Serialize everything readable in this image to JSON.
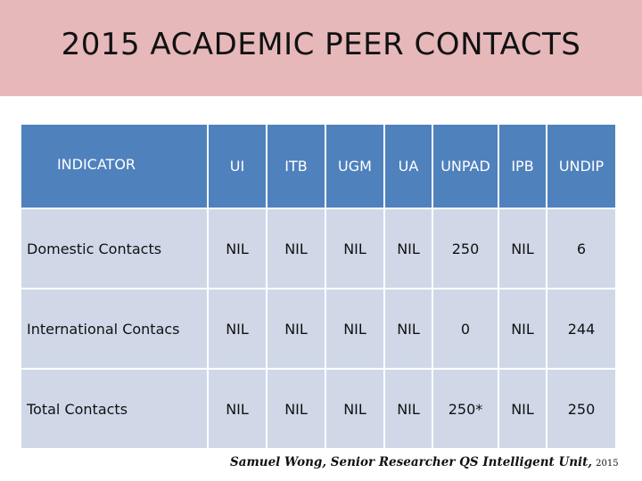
{
  "title": "2015 ACADEMIC PEER CONTACTS",
  "table": {
    "headers": [
      "INDICATOR",
      "UI",
      "ITB",
      "UGM",
      "UA",
      "UNPAD",
      "IPB",
      "UNDIP"
    ],
    "rows": [
      {
        "label": "Domestic Contacts",
        "values": [
          "NIL",
          "NIL",
          "NIL",
          "NIL",
          "250",
          "NIL",
          "6"
        ]
      },
      {
        "label": "International Contacs",
        "values": [
          "NIL",
          "NIL",
          "NIL",
          "NIL",
          "0",
          "NIL",
          "244"
        ]
      },
      {
        "label": "Total Contacts",
        "values": [
          "NIL",
          "NIL",
          "NIL",
          "NIL",
          "250*",
          "NIL",
          "250"
        ]
      }
    ]
  },
  "footer": {
    "credit": "Samuel Wong, Senior Researcher QS Intelligent Unit,",
    "year": "2015"
  },
  "colors": {
    "title_band": "#e6b8ba",
    "header_fill": "#4f81bd",
    "row_fill": "#d0d8e8"
  }
}
